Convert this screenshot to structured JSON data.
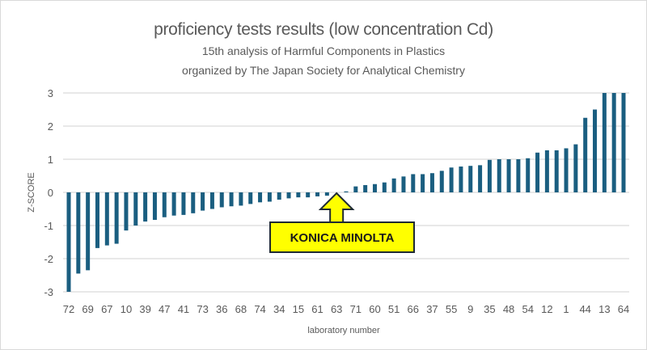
{
  "chart_data": {
    "type": "bar",
    "title": "proficiency tests results (low concentration Cd)",
    "subtitle_1": "15th analysis of Harmful Components in Plastics",
    "subtitle_2": "organized by The Japan Society for Analytical Chemistry",
    "xlabel": "laboratory number",
    "ylabel": "Z-SCORE",
    "ylim": [
      -3,
      3
    ],
    "yticks": [
      "3",
      "2",
      "1",
      "0",
      "-1",
      "-2",
      "-3"
    ],
    "ytick_values": [
      3,
      2,
      1,
      0,
      -1,
      -2,
      -3
    ],
    "grid": true,
    "bar_color": "#1a5e80",
    "tick_labels": [
      "72",
      "69",
      "67",
      "10",
      "39",
      "47",
      "41",
      "73",
      "36",
      "68",
      "74",
      "34",
      "15",
      "61",
      "63",
      "71",
      "60",
      "51",
      "66",
      "37",
      "55",
      "9",
      "35",
      "48",
      "54",
      "12",
      "1",
      "44",
      "13",
      "64"
    ],
    "tick_every": 2,
    "values": [
      -3.0,
      -2.45,
      -2.35,
      -1.68,
      -1.6,
      -1.55,
      -1.15,
      -1.0,
      -0.88,
      -0.83,
      -0.75,
      -0.7,
      -0.68,
      -0.63,
      -0.55,
      -0.5,
      -0.45,
      -0.42,
      -0.4,
      -0.35,
      -0.3,
      -0.28,
      -0.22,
      -0.18,
      -0.15,
      -0.15,
      -0.12,
      -0.1,
      0.0,
      0.03,
      0.18,
      0.22,
      0.25,
      0.3,
      0.42,
      0.48,
      0.55,
      0.55,
      0.58,
      0.65,
      0.75,
      0.78,
      0.8,
      0.82,
      0.98,
      1.0,
      1.0,
      1.0,
      1.03,
      1.2,
      1.27,
      1.27,
      1.33,
      1.45,
      2.25,
      2.5,
      3.0,
      3.0,
      3.0
    ],
    "annotation": {
      "text": "KONICA MINOLTA",
      "target_label": "63",
      "fill": "#ffff00",
      "stroke": "#1f2a33"
    }
  }
}
